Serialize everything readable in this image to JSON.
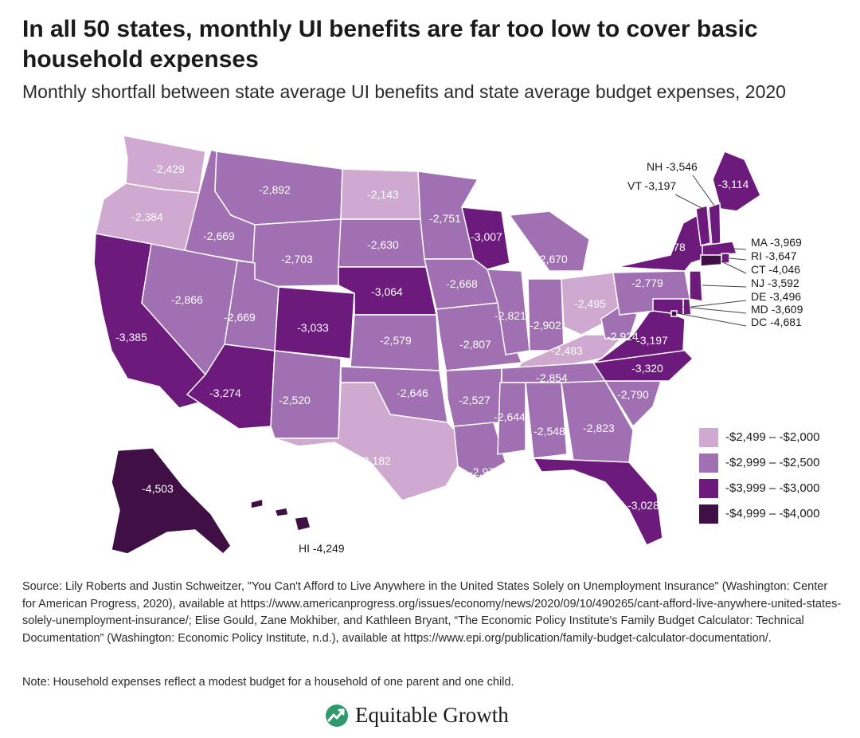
{
  "title": "In all 50 states, monthly UI benefits are far too low to cover basic household expenses",
  "subtitle": "Monthly shortfall between state average UI benefits and state average budget expenses, 2020",
  "colors": {
    "c1": "#cfa9cf",
    "c2": "#a070b2",
    "c3": "#6c1a7c",
    "c4": "#3f0f46"
  },
  "legend": [
    {
      "label": "-$2,499 – -$2,000",
      "color": "c1"
    },
    {
      "label": "-$2,999 – -$2,500",
      "color": "c2"
    },
    {
      "label": "-$3,999 – -$3,000",
      "color": "c3"
    },
    {
      "label": "-$4,999 – -$4,000",
      "color": "c4"
    }
  ],
  "states": [
    {
      "code": "WA",
      "label": "-2,429",
      "bin": "c1"
    },
    {
      "code": "OR",
      "label": "-2,384",
      "bin": "c1"
    },
    {
      "code": "CA",
      "label": "-3,385",
      "bin": "c3"
    },
    {
      "code": "ID",
      "label": "-2,669",
      "bin": "c2"
    },
    {
      "code": "NV",
      "label": "-2,866",
      "bin": "c2"
    },
    {
      "code": "MT",
      "label": "-2,892",
      "bin": "c2"
    },
    {
      "code": "WY",
      "label": "-2,703",
      "bin": "c2"
    },
    {
      "code": "UT",
      "label": "-2,669",
      "bin": "c2"
    },
    {
      "code": "AZ",
      "label": "-3,274",
      "bin": "c3"
    },
    {
      "code": "CO",
      "label": "-3,033",
      "bin": "c3"
    },
    {
      "code": "NM",
      "label": "-2,520",
      "bin": "c2"
    },
    {
      "code": "ND",
      "label": "-2,143",
      "bin": "c1"
    },
    {
      "code": "SD",
      "label": "-2,630",
      "bin": "c2"
    },
    {
      "code": "NE",
      "label": "-3,064",
      "bin": "c3"
    },
    {
      "code": "KS",
      "label": "-2,579",
      "bin": "c2"
    },
    {
      "code": "OK",
      "label": "-2,646",
      "bin": "c2"
    },
    {
      "code": "TX",
      "label": "-2,182",
      "bin": "c1"
    },
    {
      "code": "MN",
      "label": "-2,751",
      "bin": "c2"
    },
    {
      "code": "IA",
      "label": "-2,668",
      "bin": "c2"
    },
    {
      "code": "MO",
      "label": "-2,807",
      "bin": "c2"
    },
    {
      "code": "AR",
      "label": "-2,527",
      "bin": "c2"
    },
    {
      "code": "LA",
      "label": "-2,971",
      "bin": "c2"
    },
    {
      "code": "WI",
      "label": "-3,007",
      "bin": "c3"
    },
    {
      "code": "IL",
      "label": "-2,821",
      "bin": "c2"
    },
    {
      "code": "MI",
      "label": "-2,670",
      "bin": "c2"
    },
    {
      "code": "IN",
      "label": "-2,902",
      "bin": "c2"
    },
    {
      "code": "OH",
      "label": "-2,495",
      "bin": "c1"
    },
    {
      "code": "KY",
      "label": "-2,483",
      "bin": "c1"
    },
    {
      "code": "TN",
      "label": "-2,854",
      "bin": "c2"
    },
    {
      "code": "MS",
      "label": "-2,644",
      "bin": "c2"
    },
    {
      "code": "AL",
      "label": "-2,548",
      "bin": "c2"
    },
    {
      "code": "GA",
      "label": "-2,823",
      "bin": "c2"
    },
    {
      "code": "FL",
      "label": "-3,028",
      "bin": "c3"
    },
    {
      "code": "SC",
      "label": "-2,790",
      "bin": "c2"
    },
    {
      "code": "NC",
      "label": "-3,320",
      "bin": "c3"
    },
    {
      "code": "VA",
      "label": "-3,197",
      "bin": "c3"
    },
    {
      "code": "WV",
      "label": "-2,924",
      "bin": "c2"
    },
    {
      "code": "PA",
      "label": "-2,779",
      "bin": "c2"
    },
    {
      "code": "NY",
      "label": "-3,178",
      "bin": "c3"
    },
    {
      "code": "ME",
      "label": "-3,114",
      "bin": "c3"
    },
    {
      "code": "AK",
      "label": "-4,503",
      "bin": "c4"
    },
    {
      "code": "VT",
      "label": "VT -3,197",
      "bin": "c3"
    },
    {
      "code": "NH",
      "label": "NH -3,546",
      "bin": "c3"
    },
    {
      "code": "MA",
      "label": "MA -3,969",
      "bin": "c3"
    },
    {
      "code": "RI",
      "label": "RI -3,647",
      "bin": "c3"
    },
    {
      "code": "CT",
      "label": "CT -4,046",
      "bin": "c4"
    },
    {
      "code": "NJ",
      "label": "NJ -3,592",
      "bin": "c3"
    },
    {
      "code": "DE",
      "label": "DE -3,496",
      "bin": "c3"
    },
    {
      "code": "MD",
      "label": "MD -3,609",
      "bin": "c3"
    },
    {
      "code": "DC",
      "label": "DC -4,681",
      "bin": "c4"
    },
    {
      "code": "HI",
      "label": "HI -4,249",
      "bin": "c4"
    }
  ],
  "source": "Source: Lily Roberts and Justin Schweitzer, \"You Can't Afford to Live Anywhere in the United States Solely on Unemployment Insurance\" (Washington: Center for American Progress, 2020), available at https://www.americanprogress.org/issues/economy/news/2020/09/10/490265/cant-afford-live-anywhere-united-states-solely-unemployment-insurance/; Elise Gould, Zane Mokhiber, and Kathleen Bryant, “The Economic Policy Institute's Family Budget Calculator: Technical Documentation” (Washington: Economic Policy Institute, n.d.), available at https://www.epi.org/publication/family-budget-calculator-documentation/.",
  "note": "Note: Household expenses reflect a modest budget for a household of one parent and one child.",
  "brand": {
    "name": "Equitable Growth",
    "logo_icon": "growth-chart-logo-icon"
  }
}
